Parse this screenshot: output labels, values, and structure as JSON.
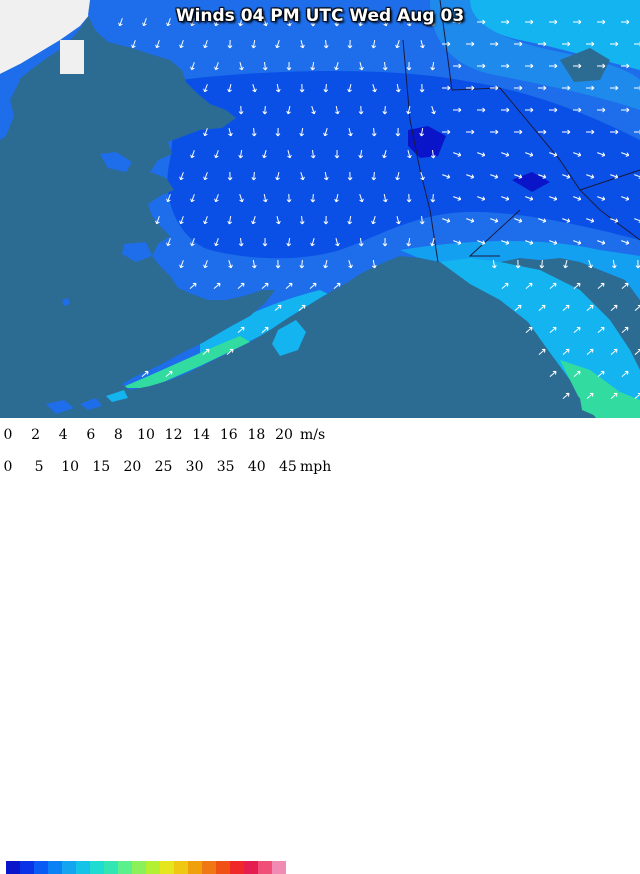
{
  "title": "Winds 04 PM UTC Wed Aug 03",
  "legend": {
    "ms_unit": "m/s",
    "mph_unit": "mph",
    "ms_ticks": [
      "0",
      "2",
      "4",
      "6",
      "8",
      "10",
      "12",
      "14",
      "16",
      "18",
      "20"
    ],
    "mph_ticks": [
      "0",
      "5",
      "10",
      "15",
      "20",
      "25",
      "30",
      "35",
      "40",
      "45"
    ],
    "colors": [
      "#0a14c8",
      "#0a32e6",
      "#0a5af5",
      "#0a82f5",
      "#14a5f0",
      "#14c3e6",
      "#1edcd2",
      "#32e6b4",
      "#5af08c",
      "#8cf05a",
      "#b4f032",
      "#e6e61e",
      "#f0c814",
      "#f0a00a",
      "#f07814",
      "#f05014",
      "#f02828",
      "#e61e50",
      "#f05078",
      "#f08cb4"
    ]
  },
  "colors": {
    "ocean": "#2c6b92",
    "land_light": "#1e6eeb",
    "land_mid": "#0a50e6",
    "land_dark": "#0a1edc",
    "coast_cyan": "#14b4f0",
    "coast_green": "#32dca0"
  }
}
